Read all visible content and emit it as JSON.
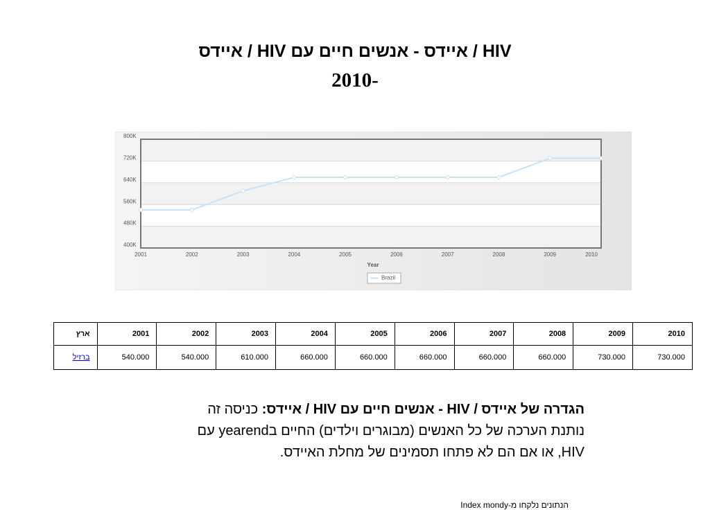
{
  "title": [
    "HIV / איידס - אנשים חיים עם HIV / איידס",
    "2010-"
  ],
  "chart_data": {
    "type": "line",
    "x_label": "Year",
    "categories": [
      "2001",
      "2002",
      "2003",
      "2004",
      "2005",
      "2006",
      "2007",
      "2008",
      "2009",
      "2010"
    ],
    "series": [
      {
        "name": "Brazil",
        "color": "#c6e0f7",
        "values": [
          540000,
          540000,
          610000,
          660000,
          660000,
          660000,
          660000,
          660000,
          730000,
          730000
        ]
      }
    ],
    "ylim": [
      400000,
      800000
    ],
    "yticks": [
      {
        "value": 400000,
        "label": "400K"
      },
      {
        "value": 480000,
        "label": "480K"
      },
      {
        "value": 560000,
        "label": "560K"
      },
      {
        "value": 640000,
        "label": "640K"
      },
      {
        "value": 720000,
        "label": "720K"
      },
      {
        "value": 800000,
        "label": "800K"
      }
    ],
    "grid": true
  },
  "table": {
    "header": [
      "ארץ",
      "2001",
      "2002",
      "2003",
      "2004",
      "2005",
      "2006",
      "2007",
      "2008",
      "2009",
      "2010"
    ],
    "rows": [
      [
        "ברזיל",
        "540.000",
        "540.000",
        "610.000",
        "660.000",
        "660.000",
        "660.000",
        "660.000",
        "660.000",
        "730.000",
        "730.000"
      ]
    ]
  },
  "definition": {
    "term": "הגדרה של איידס / HIV - אנשים חיים עם HIV / איידס:",
    "text": "כניסה זה נותנת הערכה של כל האנשים (מבוגרים וילדים) החיים בyearend עם HIV, או אם הם לא פתחו תסמינים של מחלת האיידס."
  },
  "source": "הנתונים נלקחו מ-Index mondy"
}
